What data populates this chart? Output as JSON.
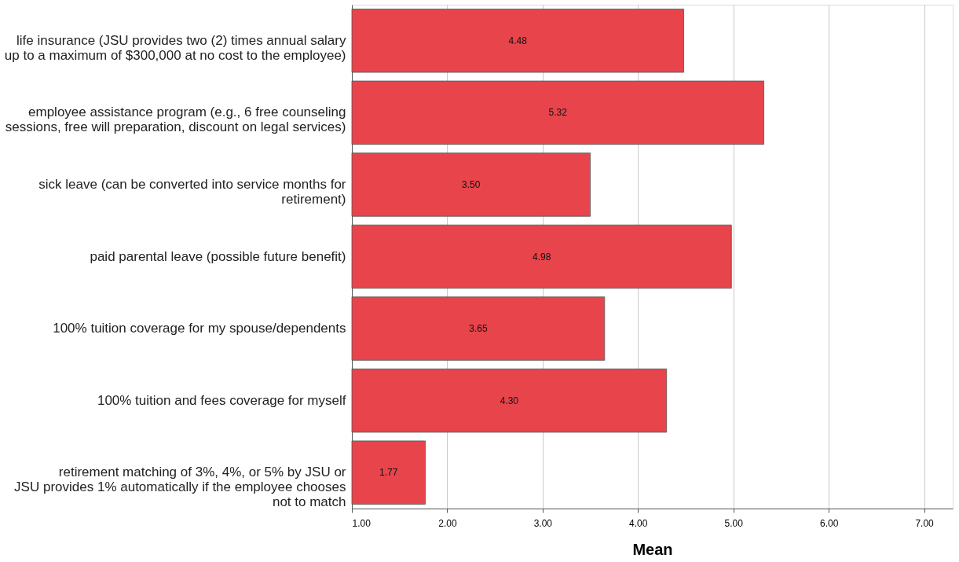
{
  "chart_data": {
    "type": "bar",
    "orientation": "horizontal",
    "xlabel": "Mean",
    "categories": [
      "life insurance (JSU provides two (2) times annual salary\nup to a maximum of $300,000 at no cost to the employee)",
      "employee assistance program (e.g., 6 free counseling\nsessions, free will preparation, discount on legal services)",
      "sick leave (can be converted into service months for\nretirement)",
      "paid parental leave (possible future benefit)",
      "100% tuition coverage for my spouse/dependents",
      "100% tuition and fees coverage for myself",
      "retirement matching of 3%, 4%, or 5% by JSU or\nJSU provides 1% automatically if the employee chooses\nnot to match"
    ],
    "values": [
      4.48,
      5.32,
      3.5,
      4.98,
      3.65,
      4.3,
      1.77
    ],
    "value_labels": [
      "4.48",
      "5.32",
      "3.50",
      "4.98",
      "3.65",
      "4.30",
      "1.77"
    ],
    "color": "#e8444b",
    "xlim": [
      1,
      7.3
    ],
    "xticks": [
      {
        "value": 1,
        "label": "1.00"
      },
      {
        "value": 2,
        "label": "2.00"
      },
      {
        "value": 3,
        "label": "3.00"
      },
      {
        "value": 4,
        "label": "4.00"
      },
      {
        "value": 5,
        "label": "5.00"
      },
      {
        "value": 6,
        "label": "6.00"
      },
      {
        "value": 7,
        "label": "7.00"
      }
    ],
    "grid": "x"
  }
}
